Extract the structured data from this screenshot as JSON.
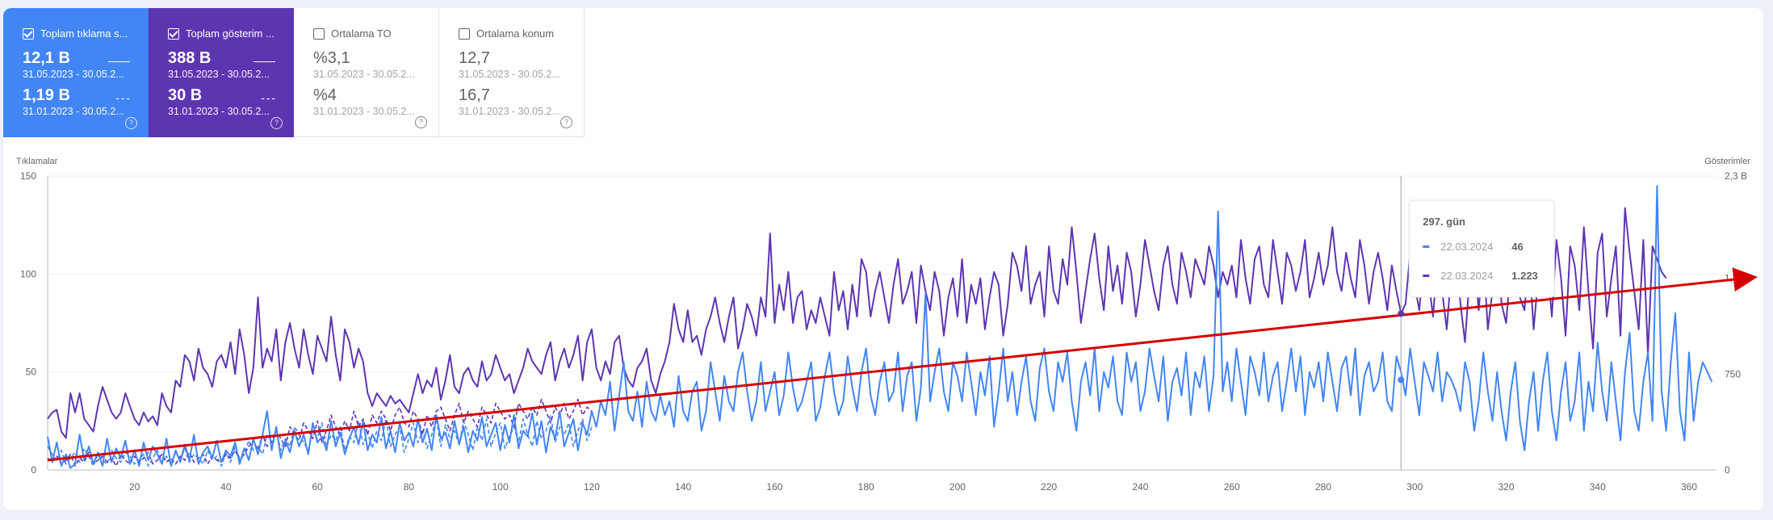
{
  "cards": [
    {
      "label": "Toplam tıklama s...",
      "checked": true,
      "v1": "12,1 B",
      "d1": "31.05.2023 - 30.05.2...",
      "v2": "1,19 B",
      "d2": "31.01.2023 - 30.05.2..."
    },
    {
      "label": "Toplam gösterim ...",
      "checked": true,
      "v1": "388 B",
      "d1": "31.05.2023 - 30.05.2...",
      "v2": "30 B",
      "d2": "31.01.2023 - 30.05.2..."
    },
    {
      "label": "Ortalama TO",
      "checked": false,
      "v1": "%3,1",
      "d1": "31.05.2023 - 30.05.2...",
      "v2": "%4",
      "d2": "31.01.2023 - 30.05.2..."
    },
    {
      "label": "Ortalama konum",
      "checked": false,
      "v1": "12,7",
      "d1": "31.05.2023 - 30.05.2...",
      "v2": "16,7",
      "d2": "31.01.2023 - 30.05.2..."
    }
  ],
  "chart_data": {
    "type": "line",
    "ylabel_left": "Tıklamalar",
    "ylabel_right": "Gösterimler",
    "xlim": [
      1,
      366
    ],
    "ylim_left": [
      0,
      150
    ],
    "ylim_right": [
      0,
      2300
    ],
    "x_ticks": [
      20,
      40,
      60,
      80,
      100,
      120,
      140,
      160,
      180,
      200,
      220,
      240,
      260,
      280,
      300,
      320,
      340,
      360
    ],
    "y_ticks_left": [
      0,
      50,
      100,
      150
    ],
    "y_ticks_left_labels": [
      "0",
      "50",
      "100",
      "150"
    ],
    "y_ticks_right": [
      0,
      750,
      1500,
      2300
    ],
    "y_ticks_right_labels": [
      "0",
      "750",
      "1,5 B",
      "2,3 B"
    ],
    "grid": true,
    "colors": {
      "clicks": "#4285f4",
      "impressions": "#5e35b1",
      "trend": "#d50000"
    },
    "series": [
      {
        "axis": "left",
        "style": "solid",
        "color": "#4285f4",
        "x0": 1,
        "values": [
          17,
          4,
          14,
          2,
          8,
          1,
          3,
          18,
          5,
          12,
          3,
          9,
          2,
          16,
          4,
          11,
          6,
          15,
          3,
          10,
          2,
          14,
          5,
          12,
          8,
          3,
          16,
          2,
          10,
          4,
          13,
          5,
          18,
          3,
          9,
          12,
          6,
          15,
          4,
          10,
          7,
          14,
          3,
          11,
          5,
          16,
          8,
          18,
          30,
          10,
          22,
          6,
          15,
          9,
          20,
          12,
          18,
          8,
          24,
          14,
          17,
          10,
          25,
          12,
          19,
          8,
          16,
          22,
          13,
          25,
          10,
          18,
          14,
          27,
          11,
          20,
          9,
          24,
          15,
          19,
          12,
          26,
          14,
          21,
          10,
          28,
          16,
          19,
          11,
          25,
          13,
          22,
          9,
          20,
          15,
          27,
          12,
          18,
          24,
          10,
          23,
          14,
          28,
          11,
          20,
          17,
          29,
          13,
          25,
          9,
          22,
          16,
          30,
          12,
          19,
          26,
          10,
          24,
          18,
          30,
          22,
          35,
          28,
          45,
          20,
          38,
          55,
          30,
          25,
          40,
          22,
          45,
          30,
          25,
          38,
          28,
          35,
          22,
          48,
          30,
          25,
          40,
          45,
          20,
          30,
          55,
          40,
          25,
          48,
          35,
          30,
          50,
          60,
          40,
          25,
          35,
          55,
          30,
          40,
          50,
          28,
          38,
          60,
          42,
          30,
          35,
          45,
          55,
          25,
          32,
          48,
          60,
          40,
          28,
          35,
          58,
          42,
          30,
          50,
          62,
          38,
          28,
          45,
          55,
          35,
          40,
          60,
          30,
          48,
          55,
          25,
          42,
          90,
          35,
          50,
          62,
          40,
          30,
          55,
          48,
          35,
          60,
          45,
          28,
          50,
          38,
          58,
          22,
          40,
          62,
          35,
          50,
          28,
          45,
          58,
          35,
          25,
          52,
          62,
          40,
          30,
          55,
          45,
          60,
          35,
          20,
          45,
          55,
          38,
          62,
          30,
          50,
          42,
          58,
          35,
          28,
          60,
          45,
          55,
          30,
          40,
          62,
          48,
          35,
          58,
          25,
          45,
          52,
          38,
          60,
          28,
          50,
          42,
          58,
          30,
          48,
          132,
          40,
          55,
          35,
          62,
          45,
          28,
          58,
          50,
          38,
          60,
          35,
          48,
          55,
          30,
          45,
          62,
          40,
          58,
          28,
          50,
          42,
          55,
          35,
          60,
          45,
          30,
          52,
          58,
          38,
          62,
          28,
          48,
          55,
          40,
          45,
          60,
          35,
          30,
          58,
          50,
          38,
          62,
          45,
          28,
          55,
          48,
          40,
          60,
          35,
          50,
          46,
          40,
          30,
          55,
          45,
          20,
          35,
          60,
          40,
          25,
          50,
          30,
          15,
          40,
          55,
          25,
          10,
          35,
          50,
          20,
          45,
          60,
          30,
          15,
          40,
          55,
          25,
          35,
          60,
          20,
          45,
          30,
          65,
          40,
          25,
          55,
          35,
          15,
          50,
          70,
          30,
          20,
          45,
          60,
          25,
          145,
          40,
          20,
          55,
          80,
          30,
          15,
          60,
          25,
          45,
          55,
          50,
          45
        ]
      },
      {
        "axis": "right",
        "style": "solid",
        "color": "#5e35b1",
        "x0": 1,
        "values": [
          400,
          450,
          470,
          300,
          250,
          600,
          450,
          600,
          400,
          350,
          300,
          500,
          650,
          550,
          450,
          400,
          450,
          600,
          500,
          400,
          350,
          450,
          380,
          420,
          350,
          600,
          500,
          450,
          700,
          650,
          900,
          850,
          700,
          950,
          800,
          750,
          650,
          850,
          900,
          800,
          1000,
          750,
          1100,
          900,
          600,
          800,
          1350,
          800,
          950,
          850,
          1100,
          700,
          1000,
          1150,
          950,
          800,
          1100,
          900,
          750,
          1050,
          950,
          850,
          1200,
          900,
          700,
          1100,
          1000,
          800,
          950,
          850,
          600,
          500,
          600,
          550,
          500,
          580,
          520,
          550,
          500,
          450,
          600,
          750,
          600,
          700,
          650,
          800,
          550,
          700,
          900,
          650,
          600,
          750,
          800,
          700,
          650,
          850,
          700,
          750,
          900,
          800,
          700,
          750,
          600,
          700,
          800,
          950,
          850,
          800,
          750,
          900,
          1000,
          700,
          850,
          950,
          800,
          900,
          1050,
          700,
          1000,
          1100,
          800,
          700,
          850,
          750,
          1000,
          1050,
          800,
          700,
          650,
          800,
          850,
          950,
          700,
          600,
          750,
          850,
          1000,
          1300,
          1100,
          1000,
          1250,
          1000,
          1050,
          900,
          1100,
          1200,
          1350,
          1150,
          1000,
          1200,
          1350,
          950,
          1100,
          1300,
          1200,
          1050,
          1350,
          1200,
          1850,
          1150,
          1450,
          1250,
          1550,
          1150,
          1350,
          1400,
          1100,
          1250,
          1150,
          1350,
          1200,
          1050,
          1550,
          1250,
          1400,
          1100,
          1450,
          1200,
          1650,
          1550,
          1200,
          1400,
          1550,
          1350,
          1150,
          1450,
          1650,
          1300,
          1400,
          1550,
          1150,
          1600,
          1400,
          1250,
          1550,
          1400,
          1050,
          1350,
          1500,
          1200,
          1650,
          1150,
          1450,
          1300,
          1500,
          1100,
          1350,
          1550,
          1450,
          1050,
          1300,
          1700,
          1600,
          1400,
          1750,
          1300,
          1450,
          1550,
          1200,
          1750,
          1400,
          1300,
          1650,
          1450,
          1900,
          1550,
          1150,
          1400,
          1650,
          1850,
          1500,
          1250,
          1750,
          1400,
          1600,
          1300,
          1700,
          1550,
          1200,
          1450,
          1800,
          1600,
          1400,
          1250,
          1600,
          1750,
          1450,
          1300,
          1700,
          1550,
          1350,
          1650,
          1550,
          1450,
          1750,
          1600,
          1350,
          1550,
          1450,
          1600,
          1350,
          1800,
          1500,
          1300,
          1650,
          1750,
          1450,
          1350,
          1800,
          1550,
          1300,
          1700,
          1600,
          1400,
          1550,
          1800,
          1350,
          1500,
          1700,
          1450,
          1600,
          1900,
          1550,
          1400,
          1700,
          1500,
          1350,
          1800,
          1600,
          1300,
          1550,
          1700,
          1500,
          1250,
          1600,
          1400,
          1223,
          1300,
          1700,
          1450,
          1250,
          1650,
          1500,
          1200,
          1650,
          1400,
          1100,
          1550,
          1700,
          1300,
          1000,
          1500,
          1650,
          1250,
          1700,
          1100,
          1400,
          1900,
          1300,
          1150,
          1600,
          1800,
          1350,
          1250,
          1700,
          1100,
          1500,
          1900,
          1600,
          1200,
          1800,
          1500,
          1050,
          1750,
          1600,
          1250,
          1900,
          1400,
          950,
          1700,
          1850,
          1200,
          1500,
          1750,
          1050,
          2050,
          1700,
          1400,
          1100,
          1800,
          900,
          1750,
          1650,
          1550,
          1500
        ]
      },
      {
        "axis": "left",
        "style": "dashed",
        "color": "#4285f4",
        "x0": 1,
        "values": [
          12,
          8,
          5,
          10,
          3,
          6,
          9,
          4,
          11,
          7,
          2,
          8,
          5,
          3,
          10,
          6,
          4,
          9,
          7,
          3,
          5,
          8,
          2,
          6,
          10,
          4,
          7,
          3,
          9,
          5,
          11,
          4,
          8,
          6,
          3,
          10,
          5,
          7,
          2,
          9,
          4,
          12,
          6,
          8,
          15,
          10,
          12,
          8,
          18,
          14,
          20,
          10,
          16,
          12,
          22,
          18,
          14,
          10,
          20,
          16,
          24,
          12,
          18,
          15,
          22,
          10,
          17,
          14,
          25,
          13,
          19,
          11,
          20,
          15,
          26,
          12,
          18,
          22,
          9,
          16,
          24,
          14,
          20,
          11,
          18,
          26,
          12,
          23,
          16,
          20,
          13,
          25,
          18,
          10,
          22,
          15,
          26,
          12,
          19,
          24,
          11,
          17,
          22,
          14,
          26,
          18,
          12,
          25,
          16,
          20,
          28,
          14,
          22,
          18,
          24,
          12,
          20,
          26,
          15,
          22
        ]
      },
      {
        "axis": "left",
        "style": "dashed",
        "color": "#5e35b1",
        "x0": 1,
        "values": [
          6,
          4,
          7,
          3,
          5,
          8,
          2,
          6,
          4,
          9,
          3,
          5,
          7,
          4,
          6,
          2,
          8,
          5,
          3,
          7,
          4,
          6,
          9,
          3,
          5,
          8,
          4,
          6,
          3,
          7,
          5,
          9,
          4,
          6,
          8,
          3,
          7,
          5,
          4,
          8,
          6,
          10,
          5,
          8,
          12,
          15,
          10,
          18,
          12,
          14,
          20,
          16,
          12,
          22,
          18,
          15,
          24,
          20,
          16,
          25,
          14,
          20,
          28,
          22,
          18,
          25,
          20,
          30,
          22,
          26,
          18,
          28,
          24,
          30,
          26,
          20,
          28,
          32,
          24,
          22,
          30,
          26,
          18,
          28,
          22,
          30,
          32,
          26,
          20,
          28,
          34,
          24,
          30,
          26,
          22,
          32,
          28,
          24,
          34,
          30,
          26,
          28,
          22,
          34,
          30,
          26,
          32,
          28,
          36,
          30,
          24,
          32,
          28,
          34,
          26,
          30,
          36,
          28,
          32,
          30
        ]
      }
    ],
    "trend": {
      "from": [
        1,
        5
      ],
      "to": [
        366,
        97
      ]
    },
    "tooltip": {
      "title": "297. gün",
      "x": 297,
      "rows": [
        {
          "date": "22.03.2024",
          "value": "46",
          "color": "#4285f4"
        },
        {
          "date": "22.03.2024",
          "value": "1.223",
          "color": "#5e35b1"
        }
      ]
    }
  }
}
